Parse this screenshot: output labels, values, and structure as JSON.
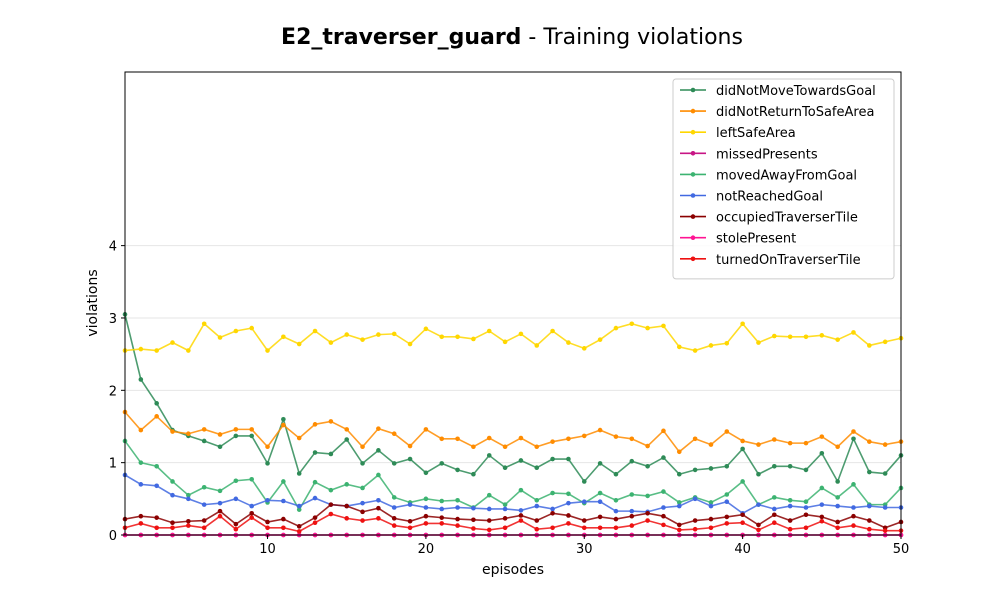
{
  "chart_data": {
    "type": "line",
    "title_bold": "E2_traverser_guard",
    "title_rest": " - Training violations",
    "xlabel": "episodes",
    "ylabel": "violations",
    "xlim": [
      1,
      50
    ],
    "ylim": [
      0,
      6.4
    ],
    "xticks": [
      10,
      20,
      30,
      40,
      50
    ],
    "yticks": [
      0,
      1,
      2,
      3,
      4
    ],
    "grid": "horizontal",
    "legend": "top-right",
    "x": [
      1,
      2,
      3,
      4,
      5,
      6,
      7,
      8,
      9,
      10,
      11,
      12,
      13,
      14,
      15,
      16,
      17,
      18,
      19,
      20,
      21,
      22,
      23,
      24,
      25,
      26,
      27,
      28,
      29,
      30,
      31,
      32,
      33,
      34,
      35,
      36,
      37,
      38,
      39,
      40,
      41,
      42,
      43,
      44,
      45,
      46,
      47,
      48,
      49,
      50
    ],
    "series": [
      {
        "name": "didNotMoveTowardsGoal",
        "color": "#2e8b57",
        "values": [
          3.05,
          2.15,
          1.82,
          1.45,
          1.37,
          1.3,
          1.22,
          1.37,
          1.37,
          0.99,
          1.6,
          0.85,
          1.14,
          1.12,
          1.32,
          0.99,
          1.17,
          0.99,
          1.05,
          0.86,
          0.99,
          0.9,
          0.84,
          1.1,
          0.93,
          1.03,
          0.93,
          1.05,
          1.05,
          0.74,
          0.99,
          0.84,
          1.02,
          0.95,
          1.07,
          0.84,
          0.9,
          0.92,
          0.95,
          1.19,
          0.84,
          0.95,
          0.95,
          0.9,
          1.13,
          0.74,
          1.33,
          0.87,
          0.85,
          1.1
        ]
      },
      {
        "name": "didNotReturnToSafeArea",
        "color": "#ff8c00",
        "values": [
          1.7,
          1.45,
          1.64,
          1.43,
          1.4,
          1.46,
          1.39,
          1.46,
          1.46,
          1.22,
          1.52,
          1.34,
          1.53,
          1.57,
          1.46,
          1.22,
          1.47,
          1.4,
          1.23,
          1.46,
          1.33,
          1.33,
          1.22,
          1.34,
          1.22,
          1.34,
          1.22,
          1.29,
          1.33,
          1.37,
          1.45,
          1.36,
          1.33,
          1.23,
          1.44,
          1.15,
          1.33,
          1.25,
          1.43,
          1.3,
          1.25,
          1.32,
          1.27,
          1.27,
          1.36,
          1.22,
          1.43,
          1.29,
          1.25,
          1.29
        ]
      },
      {
        "name": "leftSafeArea",
        "color": "#ffd700",
        "values": [
          2.55,
          2.57,
          2.55,
          2.66,
          2.55,
          2.92,
          2.73,
          2.82,
          2.86,
          2.55,
          2.74,
          2.64,
          2.82,
          2.66,
          2.77,
          2.7,
          2.77,
          2.78,
          2.64,
          2.85,
          2.74,
          2.74,
          2.71,
          2.82,
          2.67,
          2.78,
          2.62,
          2.82,
          2.66,
          2.58,
          2.7,
          2.86,
          2.92,
          2.86,
          2.89,
          2.6,
          2.55,
          2.62,
          2.65,
          2.92,
          2.66,
          2.75,
          2.74,
          2.74,
          2.76,
          2.7,
          2.8,
          2.62,
          2.67,
          2.72
        ]
      },
      {
        "name": "missedPresents",
        "color": "#c71585",
        "values": [
          0,
          0,
          0,
          0,
          0,
          0,
          0,
          0,
          0,
          0,
          0,
          0,
          0,
          0,
          0,
          0,
          0,
          0,
          0,
          0,
          0,
          0,
          0,
          0,
          0,
          0,
          0,
          0,
          0,
          0,
          0,
          0,
          0,
          0,
          0,
          0,
          0,
          0,
          0,
          0,
          0,
          0,
          0,
          0,
          0,
          0,
          0,
          0,
          0,
          0
        ]
      },
      {
        "name": "movedAwayFromGoal",
        "color": "#3cb371",
        "values": [
          1.3,
          1.0,
          0.95,
          0.74,
          0.55,
          0.66,
          0.61,
          0.75,
          0.77,
          0.45,
          0.74,
          0.35,
          0.73,
          0.62,
          0.7,
          0.65,
          0.83,
          0.52,
          0.45,
          0.5,
          0.47,
          0.48,
          0.38,
          0.55,
          0.42,
          0.62,
          0.48,
          0.58,
          0.57,
          0.44,
          0.58,
          0.48,
          0.56,
          0.54,
          0.6,
          0.45,
          0.52,
          0.45,
          0.56,
          0.74,
          0.42,
          0.52,
          0.48,
          0.46,
          0.65,
          0.52,
          0.7,
          0.42,
          0.42,
          0.65
        ]
      },
      {
        "name": "notReachedGoal",
        "color": "#4169e1",
        "values": [
          0.83,
          0.7,
          0.68,
          0.55,
          0.5,
          0.42,
          0.44,
          0.5,
          0.4,
          0.48,
          0.47,
          0.4,
          0.51,
          0.42,
          0.4,
          0.44,
          0.48,
          0.38,
          0.42,
          0.38,
          0.36,
          0.38,
          0.37,
          0.36,
          0.36,
          0.34,
          0.4,
          0.36,
          0.44,
          0.46,
          0.46,
          0.33,
          0.33,
          0.32,
          0.38,
          0.4,
          0.5,
          0.4,
          0.46,
          0.3,
          0.42,
          0.36,
          0.4,
          0.38,
          0.42,
          0.4,
          0.38,
          0.4,
          0.38,
          0.38
        ]
      },
      {
        "name": "occupiedTraverserTile",
        "color": "#8b0000",
        "values": [
          0.22,
          0.26,
          0.24,
          0.17,
          0.19,
          0.2,
          0.33,
          0.15,
          0.3,
          0.18,
          0.22,
          0.12,
          0.24,
          0.42,
          0.4,
          0.32,
          0.37,
          0.23,
          0.19,
          0.26,
          0.24,
          0.22,
          0.21,
          0.2,
          0.23,
          0.27,
          0.2,
          0.3,
          0.27,
          0.2,
          0.25,
          0.22,
          0.26,
          0.3,
          0.26,
          0.14,
          0.2,
          0.22,
          0.25,
          0.28,
          0.14,
          0.28,
          0.2,
          0.28,
          0.25,
          0.18,
          0.26,
          0.2,
          0.1,
          0.18
        ]
      },
      {
        "name": "stolePresent",
        "color": "#ff1493",
        "values": [
          0,
          0,
          0,
          0,
          0,
          0,
          0,
          0,
          0,
          0,
          0,
          0,
          0,
          0,
          0,
          0,
          0,
          0,
          0,
          0,
          0,
          0,
          0,
          0,
          0,
          0,
          0,
          0,
          0,
          0,
          0,
          0,
          0,
          0,
          0,
          0,
          0,
          0,
          0,
          0,
          0,
          0,
          0,
          0,
          0,
          0,
          0,
          0,
          0,
          0
        ]
      },
      {
        "name": "turnedOnTraverserTile",
        "color": "#ee1111",
        "values": [
          0.1,
          0.16,
          0.1,
          0.1,
          0.13,
          0.1,
          0.26,
          0.08,
          0.24,
          0.1,
          0.1,
          0.05,
          0.17,
          0.29,
          0.23,
          0.2,
          0.23,
          0.13,
          0.1,
          0.16,
          0.16,
          0.13,
          0.09,
          0.07,
          0.1,
          0.2,
          0.08,
          0.1,
          0.16,
          0.1,
          0.1,
          0.1,
          0.13,
          0.2,
          0.14,
          0.07,
          0.08,
          0.1,
          0.16,
          0.17,
          0.07,
          0.17,
          0.08,
          0.1,
          0.19,
          0.1,
          0.13,
          0.08,
          0.06,
          0.06
        ]
      }
    ]
  }
}
